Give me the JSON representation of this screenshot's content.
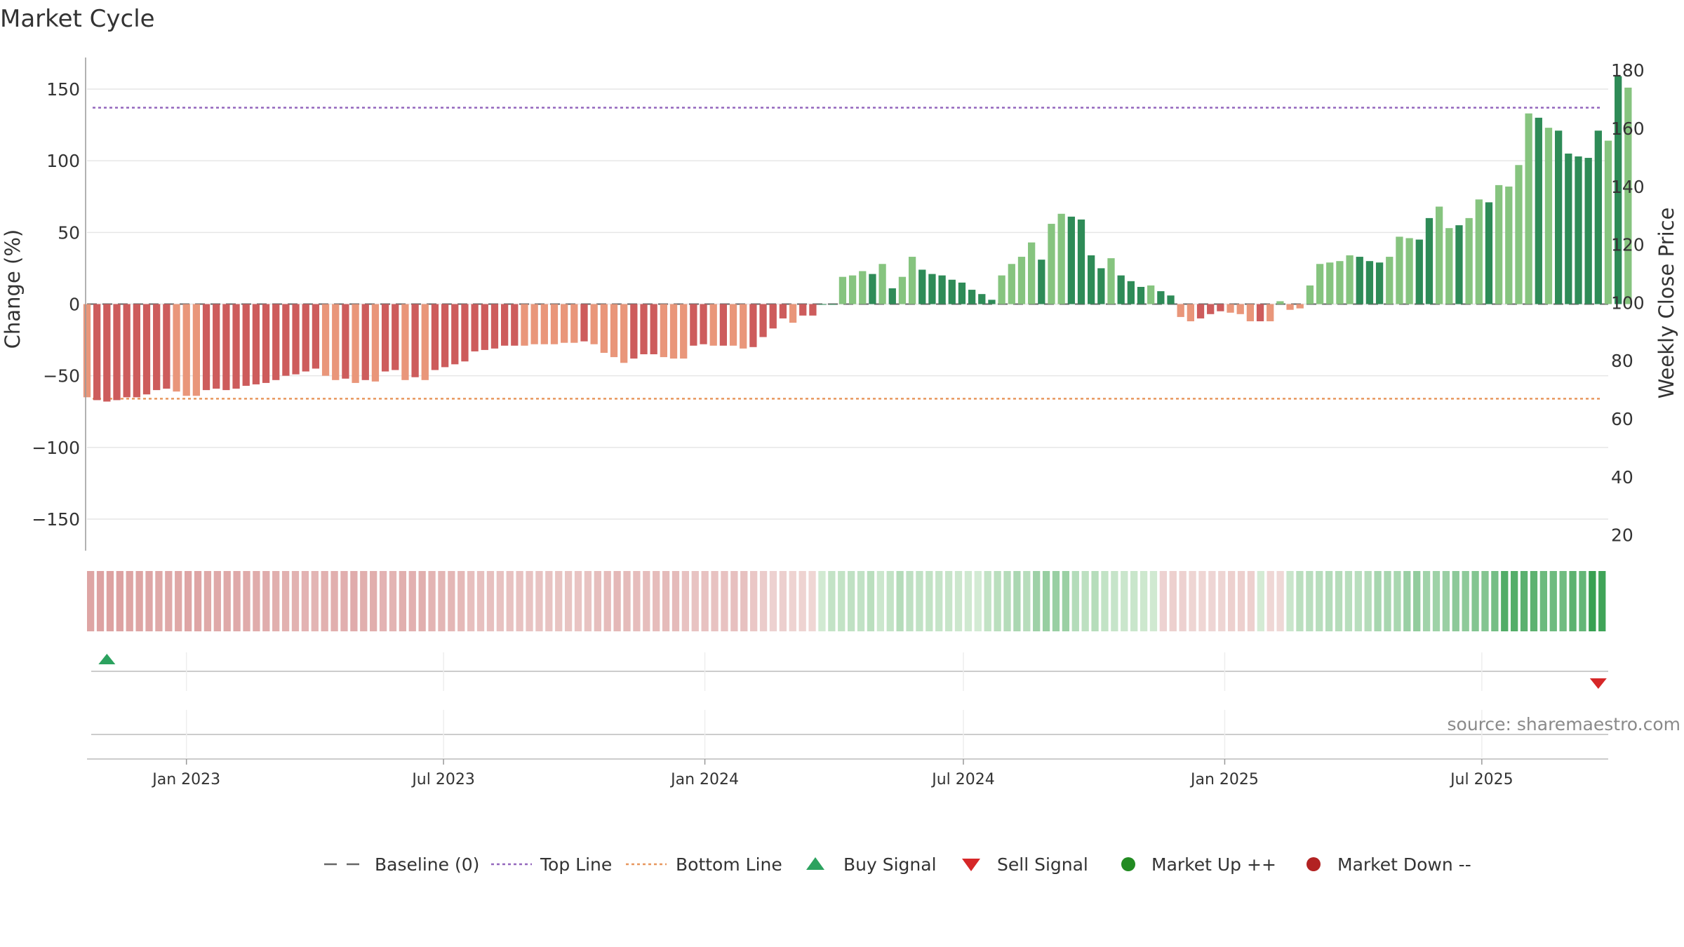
{
  "chart_data": {
    "type": "bar",
    "title": "Market Cycle",
    "ylabel_left": "Change (%)",
    "ylabel_right": "Weekly Close Price",
    "ylim_left": [
      -172,
      172
    ],
    "ylim_right": [
      14.6,
      184.4
    ],
    "yticks_left": [
      150,
      100,
      50,
      0,
      -50,
      -100,
      -150
    ],
    "ytick_labels_left": [
      "150",
      "100",
      "50",
      "0",
      "−50",
      "−100",
      "−150"
    ],
    "yticks_right": [
      180,
      160,
      140,
      120,
      100,
      80,
      60,
      40,
      20
    ],
    "ytick_labels_right": [
      "180",
      "160",
      "140",
      "120",
      "100",
      "80",
      "60",
      "40",
      "20"
    ],
    "reference_lines": {
      "baseline": 0,
      "top_line": 137,
      "bottom_line": -66
    },
    "x_start": "2022-10-23",
    "x_end": "2025-09-28",
    "xticks": [
      "2023-01-01",
      "2023-07-01",
      "2024-01-01",
      "2024-07-01",
      "2025-01-01",
      "2025-07-01"
    ],
    "xtick_labels": [
      "Jan 2023",
      "Jul 2023",
      "Jan 2024",
      "Jul 2024",
      "Jan 2025",
      "Jul 2025"
    ],
    "bars": {
      "start_date": "2022-10-23",
      "interval_days": 7,
      "values": [
        -65,
        -67,
        -68,
        -67,
        -65,
        -65,
        -63,
        -60,
        -59,
        -61,
        -64,
        -64,
        -60,
        -59,
        -60,
        -59,
        -57,
        -56,
        -55,
        -53,
        -50,
        -49,
        -47,
        -45,
        -50,
        -53,
        -52,
        -55,
        -53,
        -54,
        -47,
        -46,
        -53,
        -51,
        -53,
        -46,
        -44,
        -42,
        -40,
        -33,
        -32,
        -31,
        -29,
        -29,
        -29,
        -28,
        -28,
        -28,
        -27,
        -27,
        -26,
        -28,
        -34,
        -37,
        -41,
        -38,
        -35,
        -35,
        -37,
        -38,
        -38,
        -29,
        -28,
        -29,
        -29,
        -29,
        -31,
        -30,
        -23,
        -17,
        -10,
        -13,
        -8,
        -8,
        0,
        0,
        19,
        20,
        23,
        21,
        28,
        11,
        19,
        33,
        24,
        21,
        20,
        17,
        15,
        10,
        7,
        3,
        20,
        28,
        33,
        43,
        31,
        56,
        63,
        61,
        59,
        34,
        25,
        32,
        20,
        16,
        12,
        13,
        9,
        6,
        -9,
        -12,
        -10,
        -7,
        -5,
        -6,
        -7,
        -12,
        -12,
        -12,
        2,
        -4,
        -3,
        13,
        28,
        29,
        30,
        34,
        33,
        30,
        29,
        33,
        47,
        46,
        45,
        60,
        68,
        53,
        55,
        60,
        73,
        71,
        83,
        82,
        97,
        133,
        130,
        123,
        121,
        105,
        103,
        102,
        121,
        114,
        159,
        151
      ],
      "shades": [
        0,
        1,
        1,
        1,
        1,
        1,
        1,
        1,
        1,
        0,
        0,
        0,
        1,
        1,
        1,
        1,
        1,
        1,
        1,
        1,
        1,
        1,
        1,
        1,
        0,
        0,
        1,
        0,
        1,
        0,
        1,
        1,
        0,
        1,
        0,
        1,
        1,
        1,
        1,
        1,
        1,
        1,
        1,
        1,
        0,
        0,
        0,
        0,
        0,
        0,
        1,
        0,
        0,
        0,
        0,
        1,
        1,
        1,
        0,
        0,
        0,
        1,
        1,
        0,
        1,
        0,
        0,
        1,
        1,
        1,
        1,
        0,
        1,
        1,
        1,
        1,
        0,
        0,
        0,
        1,
        0,
        1,
        0,
        0,
        1,
        1,
        1,
        1,
        1,
        1,
        1,
        1,
        0,
        0,
        0,
        0,
        1,
        0,
        0,
        1,
        1,
        1,
        1,
        0,
        1,
        1,
        1,
        0,
        1,
        1,
        0,
        0,
        1,
        1,
        1,
        0,
        0,
        0,
        1,
        0,
        0,
        0,
        0,
        0,
        0,
        0,
        0,
        0,
        1,
        1,
        1,
        0,
        0,
        0,
        1,
        1,
        0,
        0,
        1,
        0,
        0,
        1,
        0,
        0,
        0,
        0,
        1,
        0,
        1,
        1,
        1,
        1,
        1,
        0,
        1,
        0,
        1
      ]
    },
    "heat_strip": [
      -0.69,
      -0.72,
      -0.73,
      -0.72,
      -0.69,
      -0.69,
      -0.67,
      -0.64,
      -0.63,
      -0.65,
      -0.68,
      -0.68,
      -0.64,
      -0.63,
      -0.64,
      -0.63,
      -0.61,
      -0.6,
      -0.59,
      -0.56,
      -0.53,
      -0.52,
      -0.5,
      -0.48,
      -0.53,
      -0.56,
      -0.55,
      -0.59,
      -0.56,
      -0.57,
      -0.5,
      -0.49,
      -0.56,
      -0.54,
      -0.56,
      -0.49,
      -0.47,
      -0.45,
      -0.43,
      -0.35,
      -0.34,
      -0.33,
      -0.31,
      -0.31,
      -0.31,
      -0.3,
      -0.3,
      -0.3,
      -0.29,
      -0.29,
      -0.28,
      -0.3,
      -0.36,
      -0.39,
      -0.44,
      -0.4,
      -0.37,
      -0.37,
      -0.39,
      -0.4,
      -0.4,
      -0.31,
      -0.3,
      -0.31,
      -0.31,
      -0.31,
      -0.33,
      -0.32,
      -0.24,
      -0.18,
      -0.11,
      -0.14,
      -0.09,
      -0.09,
      -0.05,
      0.05,
      0.2,
      0.21,
      0.24,
      0.22,
      0.3,
      0.12,
      0.2,
      0.35,
      0.26,
      0.22,
      0.21,
      0.18,
      0.16,
      0.11,
      0.07,
      0.03,
      0.21,
      0.3,
      0.35,
      0.46,
      0.33,
      0.6,
      0.67,
      0.65,
      0.63,
      0.36,
      0.27,
      0.34,
      0.21,
      0.17,
      0.13,
      0.14,
      0.1,
      0.06,
      -0.1,
      -0.13,
      -0.11,
      -0.07,
      -0.05,
      -0.06,
      -0.07,
      -0.13,
      -0.13,
      -0.13,
      0.02,
      -0.04,
      -0.03,
      0.14,
      0.3,
      0.31,
      0.32,
      0.36,
      0.35,
      0.32,
      0.31,
      0.35,
      0.5,
      0.49,
      0.48,
      0.64,
      0.72,
      0.56,
      0.59,
      0.64,
      0.78,
      0.76,
      0.88,
      0.87,
      1.03,
      1.41,
      1.38,
      1.31,
      1.29,
      1.12,
      1.1,
      1.08,
      1.29,
      1.21,
      1.69,
      1.6
    ],
    "signals": [
      {
        "type": "buy",
        "date": "2022-11-06"
      },
      {
        "type": "sell",
        "date": "2025-09-21"
      }
    ],
    "legend": [
      {
        "label": "Baseline (0)",
        "symbol": "dash",
        "color": "#666666"
      },
      {
        "label": "Top Line",
        "symbol": "dotted",
        "color": "#9467bd"
      },
      {
        "label": "Bottom Line",
        "symbol": "dotted",
        "color": "#e8975e"
      },
      {
        "label": "Buy Signal",
        "symbol": "triangle-up",
        "color": "#2ca25f"
      },
      {
        "label": "Sell Signal",
        "symbol": "triangle-down",
        "color": "#d62728"
      },
      {
        "label": "Market Up ++",
        "symbol": "circle",
        "color": "#228b22"
      },
      {
        "label": "Market Down --",
        "symbol": "circle",
        "color": "#b22222"
      }
    ],
    "legend_position": "bottom",
    "grid": true,
    "source": "source: sharemaestro.com",
    "colors": {
      "neg_dark": "#cd5c5c",
      "neg_light": "#e9967a",
      "pos_dark": "#2e8b57",
      "pos_light": "#86c47f",
      "top_line": "#9467bd",
      "bottom_line": "#e8975e",
      "grid": "#e6e6e6",
      "baseline": "#666666",
      "buy": "#2ca25f",
      "sell": "#d62728"
    }
  }
}
